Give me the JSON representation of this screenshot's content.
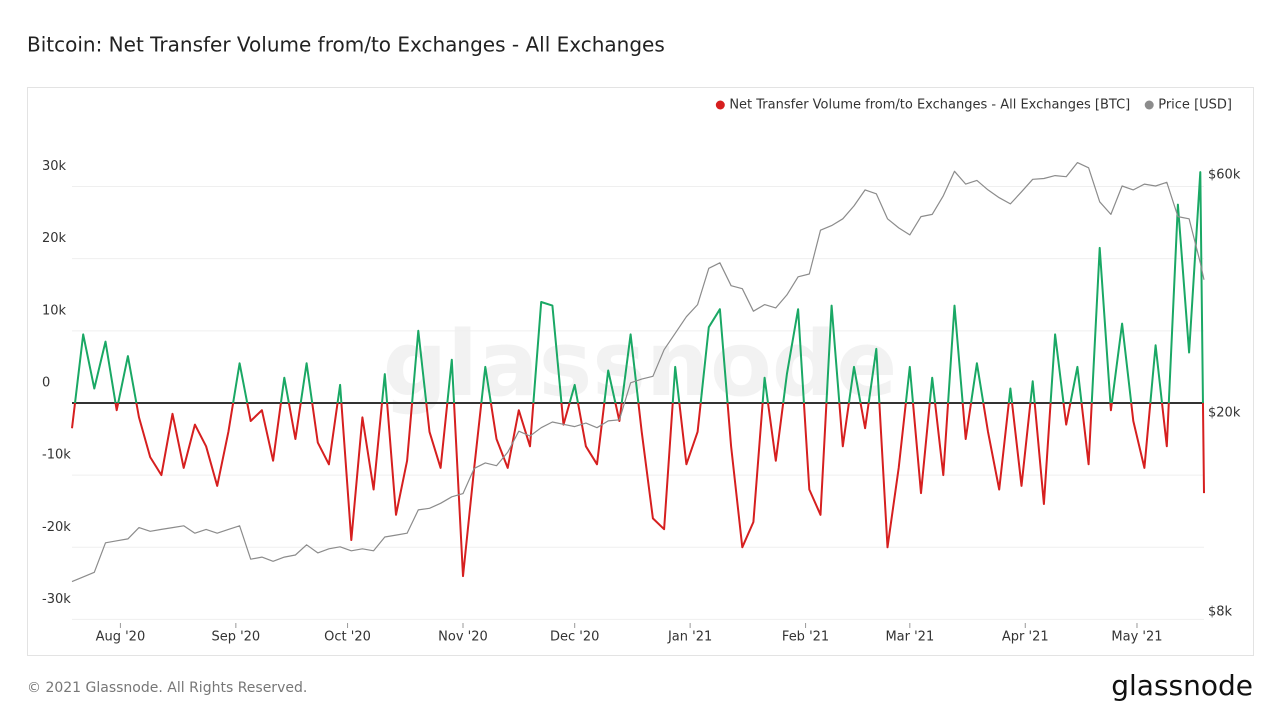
{
  "chart_data": {
    "type": "line",
    "title": "Bitcoin: Net Transfer Volume from/to Exchanges - All Exchanges",
    "watermark": "glassnode",
    "footer": "© 2021 Glassnode. All Rights Reserved.",
    "logo": "glassnode",
    "x": [
      0,
      3,
      6,
      9,
      12,
      15,
      18,
      21,
      24,
      27,
      30,
      33,
      36,
      39,
      42,
      45,
      48,
      51,
      54,
      57,
      60,
      63,
      66,
      69,
      72,
      75,
      78,
      81,
      84,
      87,
      90,
      93,
      96,
      99,
      102,
      105,
      108,
      111,
      114,
      117,
      120,
      123,
      126,
      129,
      132,
      135,
      138,
      141,
      144,
      147,
      150,
      153,
      156,
      159,
      162,
      165,
      168,
      171,
      174,
      177,
      180,
      183,
      186,
      189,
      192,
      195,
      198,
      201,
      204,
      207,
      210,
      213,
      216,
      219,
      222,
      225,
      228,
      231,
      234,
      237,
      240,
      243,
      246,
      249,
      252,
      255,
      258,
      261,
      264,
      267,
      270,
      273,
      276,
      279,
      282,
      285,
      288,
      291,
      294,
      297,
      300,
      303,
      304
    ],
    "xlim": [
      0,
      304
    ],
    "xticks": [
      {
        "value": 13,
        "label": "Aug '20"
      },
      {
        "value": 44,
        "label": "Sep '20"
      },
      {
        "value": 74,
        "label": "Oct '20"
      },
      {
        "value": 105,
        "label": "Nov '20"
      },
      {
        "value": 135,
        "label": "Dec '20"
      },
      {
        "value": 166,
        "label": "Jan '21"
      },
      {
        "value": 197,
        "label": "Feb '21"
      },
      {
        "value": 225,
        "label": "Mar '21"
      },
      {
        "value": 256,
        "label": "Apr '21"
      },
      {
        "value": 286,
        "label": "May '21"
      }
    ],
    "ylim": [
      -30500,
      39500
    ],
    "yticks": [
      {
        "value": -30000,
        "label": "-30k"
      },
      {
        "value": -20000,
        "label": "-20k"
      },
      {
        "value": -10000,
        "label": "-10k"
      },
      0,
      {
        "value": 10000,
        "label": "10k"
      },
      {
        "value": 20000,
        "label": "20k"
      },
      {
        "value": 30000,
        "label": "30k"
      }
    ],
    "y2lim": [
      7600,
      78000
    ],
    "y2scale": "log",
    "y2ticks": [
      {
        "value": 8000,
        "label": "$8k"
      },
      {
        "value": 20000,
        "label": "$20k"
      },
      {
        "value": 60000,
        "label": "$60k"
      }
    ],
    "grid": true,
    "legend": "top-right",
    "series": [
      {
        "name": "Net Transfer Volume from/to Exchanges - All Exchanges [BTC]",
        "color": "#d61f1f",
        "color_positive": "#1aa865",
        "color_negative": "#d61f1f",
        "values": [
          -3500,
          9500,
          2000,
          8500,
          -1000,
          6500,
          -2000,
          -7500,
          -10000,
          -1500,
          -9000,
          -3000,
          -6000,
          -11500,
          -4000,
          5500,
          -2500,
          -1000,
          -8000,
          3500,
          -5000,
          5500,
          -5500,
          -8500,
          2500,
          -19000,
          -2000,
          -12000,
          4000,
          -15500,
          -8000,
          10000,
          -4000,
          -9000,
          6000,
          -24000,
          -9000,
          5000,
          -5000,
          -9000,
          -1000,
          -6000,
          14000,
          13500,
          -3000,
          2500,
          -6000,
          -8500,
          4500,
          -2500,
          9500,
          -4000,
          -16000,
          -17500,
          5000,
          -8500,
          -4000,
          10500,
          13000,
          -6000,
          -20000,
          -16500,
          3500,
          -8000,
          4000,
          13000,
          -12000,
          -15500,
          13500,
          -6000,
          5000,
          -3500,
          7500,
          -20000,
          -9000,
          5000,
          -12500,
          3500,
          -10000,
          13500,
          -5000,
          5500,
          -4000,
          -12000,
          2000,
          -11500,
          3000,
          -14000,
          9500,
          -3000,
          5000,
          -8500,
          21500,
          -1000,
          11000,
          -2500,
          -9000,
          8000,
          -6000,
          27500,
          7000,
          32000,
          -12500
        ]
      },
      {
        "name": "Price [USD]",
        "color": "#8c8c8c",
        "axis": "y2",
        "values": [
          9200,
          9400,
          9600,
          11000,
          11100,
          11200,
          11800,
          11600,
          11700,
          11800,
          11900,
          11500,
          11700,
          11500,
          11700,
          11900,
          10200,
          10300,
          10100,
          10300,
          10400,
          10900,
          10500,
          10700,
          10800,
          10600,
          10700,
          10600,
          11300,
          11400,
          11500,
          12800,
          12900,
          13200,
          13600,
          13800,
          15500,
          15900,
          15700,
          16700,
          18400,
          18000,
          18700,
          19200,
          19000,
          18800,
          19100,
          18700,
          19300,
          19400,
          23000,
          23400,
          23700,
          26800,
          28900,
          31200,
          33000,
          39000,
          40000,
          36000,
          35500,
          32000,
          33000,
          32500,
          34500,
          37500,
          38000,
          46500,
          47500,
          49000,
          52000,
          56000,
          55000,
          49000,
          47000,
          45500,
          49500,
          50000,
          54500,
          61000,
          57500,
          58500,
          56000,
          54000,
          52500,
          55500,
          58800,
          59000,
          59800,
          59500,
          63500,
          62000,
          53000,
          50000,
          57000,
          56000,
          57500,
          57000,
          58000,
          49500,
          49000,
          40000,
          37000
        ]
      }
    ]
  }
}
